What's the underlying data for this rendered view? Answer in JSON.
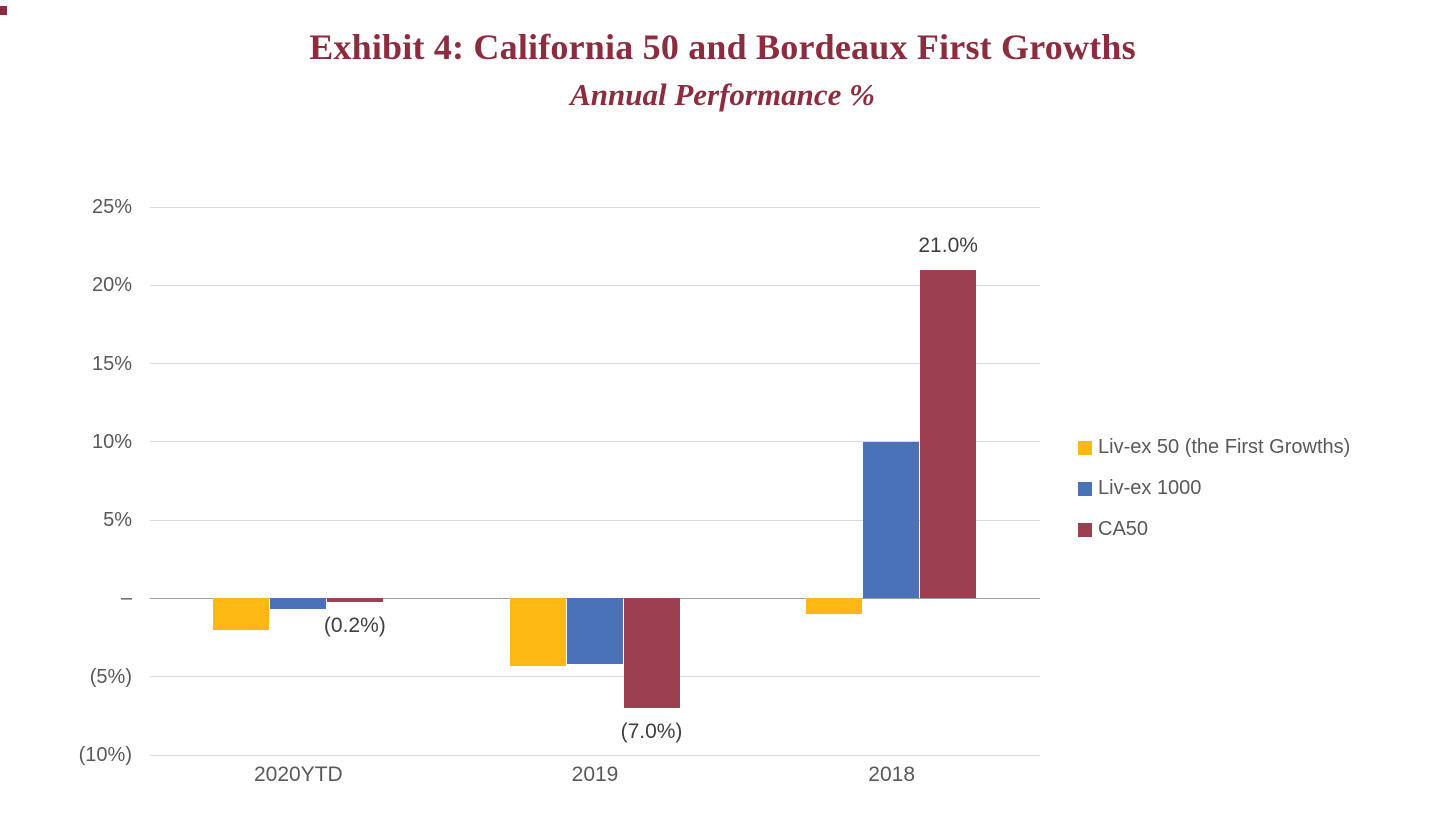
{
  "header": {
    "title": "Exhibit 4: California 50 and Bordeaux First Growths",
    "subtitle": "Annual Performance %"
  },
  "colors": {
    "title": "#8E2C3F",
    "axis_text": "#595959",
    "gridline": "#D9D9D9",
    "zero_line": "#9E9E9E",
    "data_label": "#3F3F3F",
    "background": "#FFFFFF"
  },
  "chart_data": {
    "type": "bar",
    "title": "Exhibit 4: California 50 and Bordeaux First Growths",
    "subtitle": "Annual Performance %",
    "categories": [
      "2020YTD",
      "2019",
      "2018"
    ],
    "series": [
      {
        "name": "Liv-ex 50 (the First Growths)",
        "color": "#FDB813",
        "values": [
          -2.0,
          -4.3,
          -1.0
        ]
      },
      {
        "name": "Liv-ex 1000",
        "color": "#4A72B8",
        "values": [
          -0.7,
          -4.2,
          10.0
        ]
      },
      {
        "name": "CA50",
        "color": "#9C3F50",
        "values": [
          -0.2,
          -7.0,
          21.0
        ]
      }
    ],
    "ylim": [
      -10,
      25
    ],
    "yticks": [
      {
        "value": 25,
        "label": "25%"
      },
      {
        "value": 20,
        "label": "20%"
      },
      {
        "value": 15,
        "label": "15%"
      },
      {
        "value": 10,
        "label": "10%"
      },
      {
        "value": 5,
        "label": "5%"
      },
      {
        "value": 0,
        "label": "–"
      },
      {
        "value": -5,
        "label": "(5%)"
      },
      {
        "value": -10,
        "label": "(10%)"
      }
    ],
    "data_labels": [
      {
        "category": "2020YTD",
        "series": "CA50",
        "text": "(0.2%)"
      },
      {
        "category": "2019",
        "series": "CA50",
        "text": "(7.0%)"
      },
      {
        "category": "2018",
        "series": "CA50",
        "text": "21.0%"
      }
    ],
    "grid": true,
    "legend_position": "right"
  }
}
